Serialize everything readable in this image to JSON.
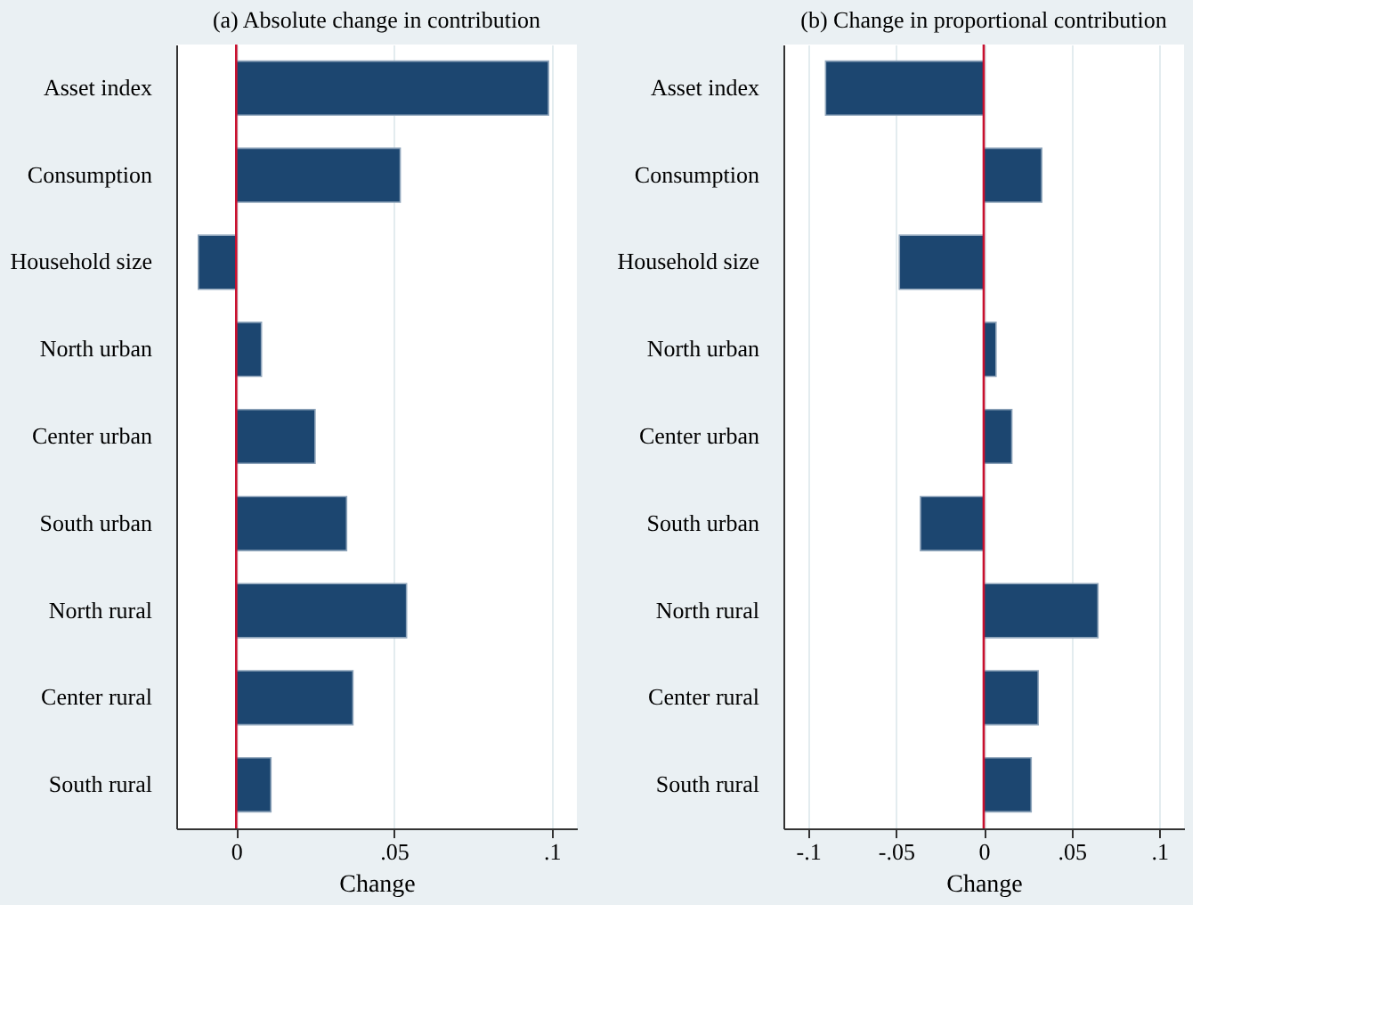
{
  "chart_data": [
    {
      "type": "bar",
      "orientation": "horizontal",
      "title": "(a) Absolute change in contribution",
      "xlabel": "Change",
      "categories": [
        "Asset index",
        "Consumption",
        "Household size",
        "North urban",
        "Center urban",
        "South urban",
        "North rural",
        "Center rural",
        "South rural"
      ],
      "values": [
        0.099,
        0.052,
        -0.012,
        0.008,
        0.025,
        0.035,
        0.054,
        0.037,
        0.011
      ],
      "color": "#1c4670",
      "xlim": [
        -0.019,
        0.108
      ],
      "xticks": [
        0,
        {
          "value": 0.05,
          "label": ".05"
        },
        {
          "value": 0.1,
          "label": ".1"
        }
      ],
      "ref_lines": [
        {
          "axis": "x",
          "value": 0,
          "color": "#c8102e"
        }
      ],
      "grid": "x"
    },
    {
      "type": "bar",
      "orientation": "horizontal",
      "title": "(b) Change in proportional contribution",
      "xlabel": "Change",
      "categories": [
        "Asset index",
        "Consumption",
        "Household size",
        "North urban",
        "Center urban",
        "South urban",
        "North rural",
        "Center rural",
        "South rural"
      ],
      "values": [
        -0.09,
        0.033,
        -0.048,
        0.007,
        0.016,
        -0.036,
        0.065,
        0.031,
        0.027
      ],
      "color": "#1c4670",
      "xlim": [
        -0.114,
        0.114
      ],
      "xticks": [
        {
          "value": -0.1,
          "label": "-.1"
        },
        {
          "value": -0.05,
          "label": "-.05"
        },
        0,
        {
          "value": 0.05,
          "label": ".05"
        },
        {
          "value": 0.1,
          "label": ".1"
        }
      ],
      "ref_lines": [
        {
          "axis": "x",
          "value": 0,
          "color": "#c8102e"
        }
      ],
      "grid": "x"
    }
  ]
}
